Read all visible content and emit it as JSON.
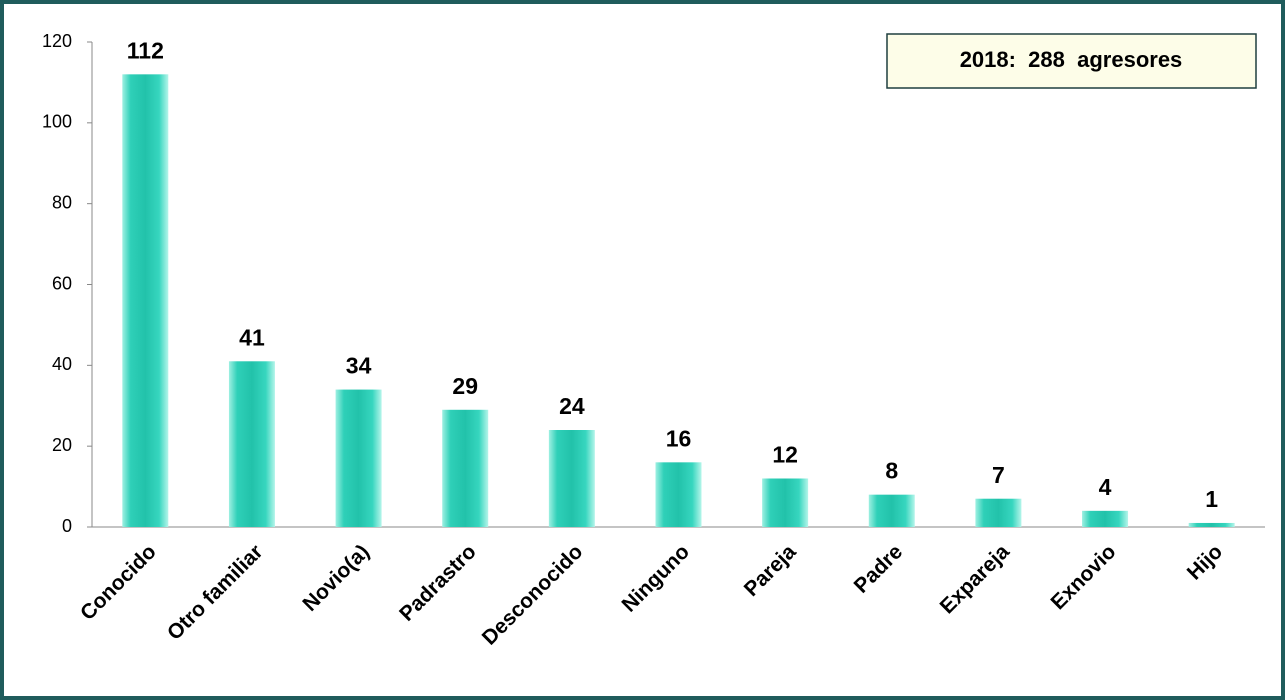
{
  "chart_data": {
    "type": "bar",
    "annotation": "2018:  288  agresores",
    "categories": [
      "Conocido",
      "Otro familiar",
      "Novio(a)",
      "Padrastro",
      "Desconocido",
      "Ninguno",
      "Pareja",
      "Padre",
      "Expareja",
      "Exnovio",
      "Hijo"
    ],
    "values": [
      112,
      41,
      34,
      29,
      24,
      16,
      12,
      8,
      7,
      4,
      1
    ],
    "color": "#22c2aa",
    "ylim": [
      0,
      120
    ],
    "yticks": [
      0,
      20,
      40,
      60,
      80,
      100,
      120
    ],
    "grid": false
  }
}
